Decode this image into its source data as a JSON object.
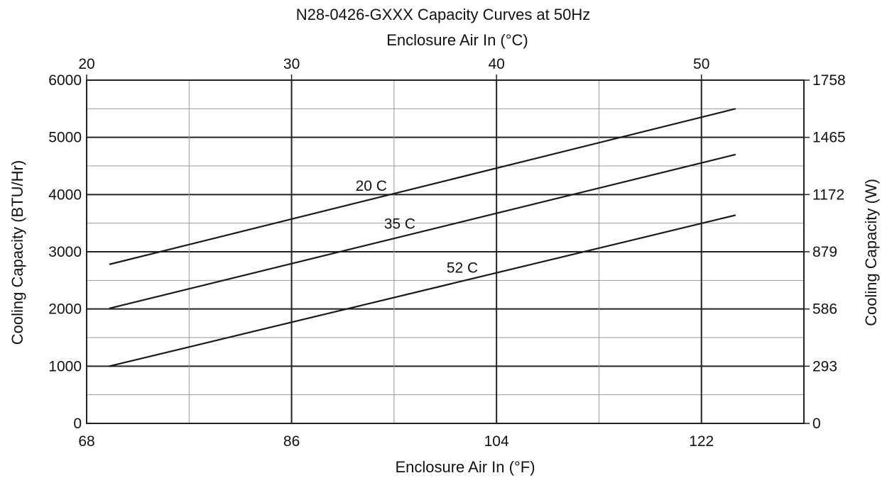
{
  "chart_data": {
    "type": "line",
    "title": "N28-0426-GXXX Capacity Curves at 50Hz",
    "xlabel": "Enclosure Air In (°F)",
    "x2label": "Enclosure Air In (°C)",
    "ylabel": "Cooling Capacity (BTU/Hr)",
    "y2label": "Cooling Capacity (W)",
    "xlim": [
      68,
      131
    ],
    "ylim": [
      0,
      6000
    ],
    "x_ticks": [
      68,
      86,
      104,
      122
    ],
    "x2_ticks": [
      20,
      30,
      40,
      50
    ],
    "y_ticks": [
      0,
      1000,
      2000,
      3000,
      4000,
      5000,
      6000
    ],
    "y2_ticks": [
      0,
      293,
      586,
      879,
      1172,
      1465,
      1758
    ],
    "grid": true,
    "series": [
      {
        "name": "20 C",
        "x": [
          70,
          125
        ],
        "y": [
          2780,
          5500
        ]
      },
      {
        "name": "35 C",
        "x": [
          70,
          125
        ],
        "y": [
          2010,
          4700
        ]
      },
      {
        "name": "52 C",
        "x": [
          70,
          125
        ],
        "y": [
          1000,
          3640
        ]
      }
    ]
  }
}
